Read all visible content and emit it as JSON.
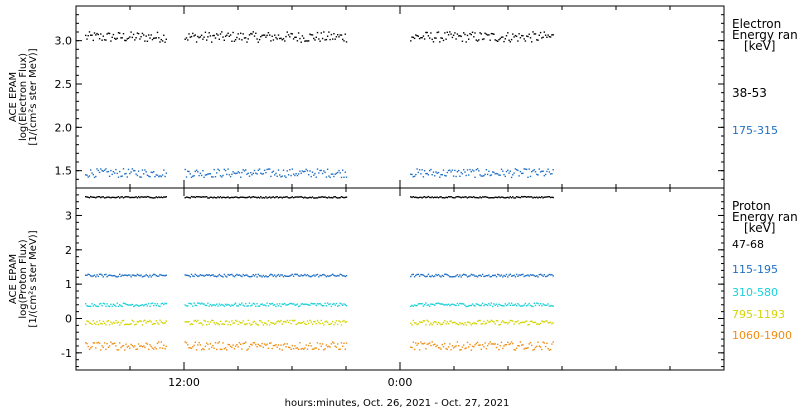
{
  "colors": {
    "black": "#000000",
    "blue": "#1f6fc4",
    "cyan": "#18d0d8",
    "yellow": "#d4d400",
    "orange": "#f08c10"
  },
  "chart_data": [
    {
      "type": "scatter",
      "panel": "electron",
      "ylabel_lines": [
        "ACE EPAM",
        "log(Electron Flux)",
        "[1/(cm²s ster MeV)]"
      ],
      "ylim": [
        1.3,
        3.4
      ],
      "yticks": [
        1.5,
        2.0,
        2.5,
        3.0
      ],
      "ytick_labels": [
        "1.5",
        "2.0",
        "2.5",
        "3.0"
      ],
      "legend_title": [
        "Electron",
        "Energy ran",
        "[keV]"
      ],
      "gaps": [
        [
          5.0,
          6.0
        ],
        [
          15.0,
          18.5
        ]
      ],
      "series": [
        {
          "label": "38-53",
          "color": "black",
          "mean": 3.05,
          "spread": 0.06,
          "start_hour": 0.5,
          "end_hour": 26.5
        },
        {
          "label": "175-315",
          "color": "blue",
          "mean": 1.48,
          "spread": 0.05,
          "start_hour": 0.5,
          "end_hour": 26.5
        }
      ]
    },
    {
      "type": "scatter",
      "panel": "proton",
      "ylabel_lines": [
        "ACE EPAM",
        "log(Proton Flux)",
        "[1/(cm²s ster MeV)]"
      ],
      "ylim": [
        -1.5,
        3.8
      ],
      "yticks": [
        -1,
        0,
        1,
        2,
        3
      ],
      "ytick_labels": [
        "-1",
        "0",
        "1",
        "2",
        "3"
      ],
      "legend_title": [
        "Proton",
        "Energy ran",
        "[keV]"
      ],
      "gaps": [
        [
          5.0,
          6.0
        ],
        [
          15.0,
          18.5
        ]
      ],
      "series": [
        {
          "label": "47-68",
          "color": "black",
          "mean": 3.55,
          "spread": 0.02,
          "start_hour": 0.5,
          "end_hour": 26.5
        },
        {
          "label": "115-195",
          "color": "blue",
          "mean": 1.27,
          "spread": 0.04,
          "start_hour": 0.5,
          "end_hour": 26.5
        },
        {
          "label": "310-580",
          "color": "cyan",
          "mean": 0.42,
          "spread": 0.05,
          "start_hour": 0.5,
          "end_hour": 26.5
        },
        {
          "label": "795-1193",
          "color": "yellow",
          "mean": -0.1,
          "spread": 0.07,
          "start_hour": 0.5,
          "end_hour": 26.5
        },
        {
          "label": "1060-1900",
          "color": "orange",
          "mean": -0.78,
          "spread": 0.12,
          "start_hour": 0.5,
          "end_hour": 26.5
        }
      ]
    }
  ],
  "x_axis": {
    "range_hours": [
      0,
      36
    ],
    "major_ticks": [
      {
        "hour": 6,
        "label": "12:00"
      },
      {
        "hour": 18,
        "label": "0:00"
      }
    ],
    "minor_step_hours": 3,
    "xlabel": "hours:minutes, Oct. 26, 2021 - Oct. 27, 2021"
  }
}
